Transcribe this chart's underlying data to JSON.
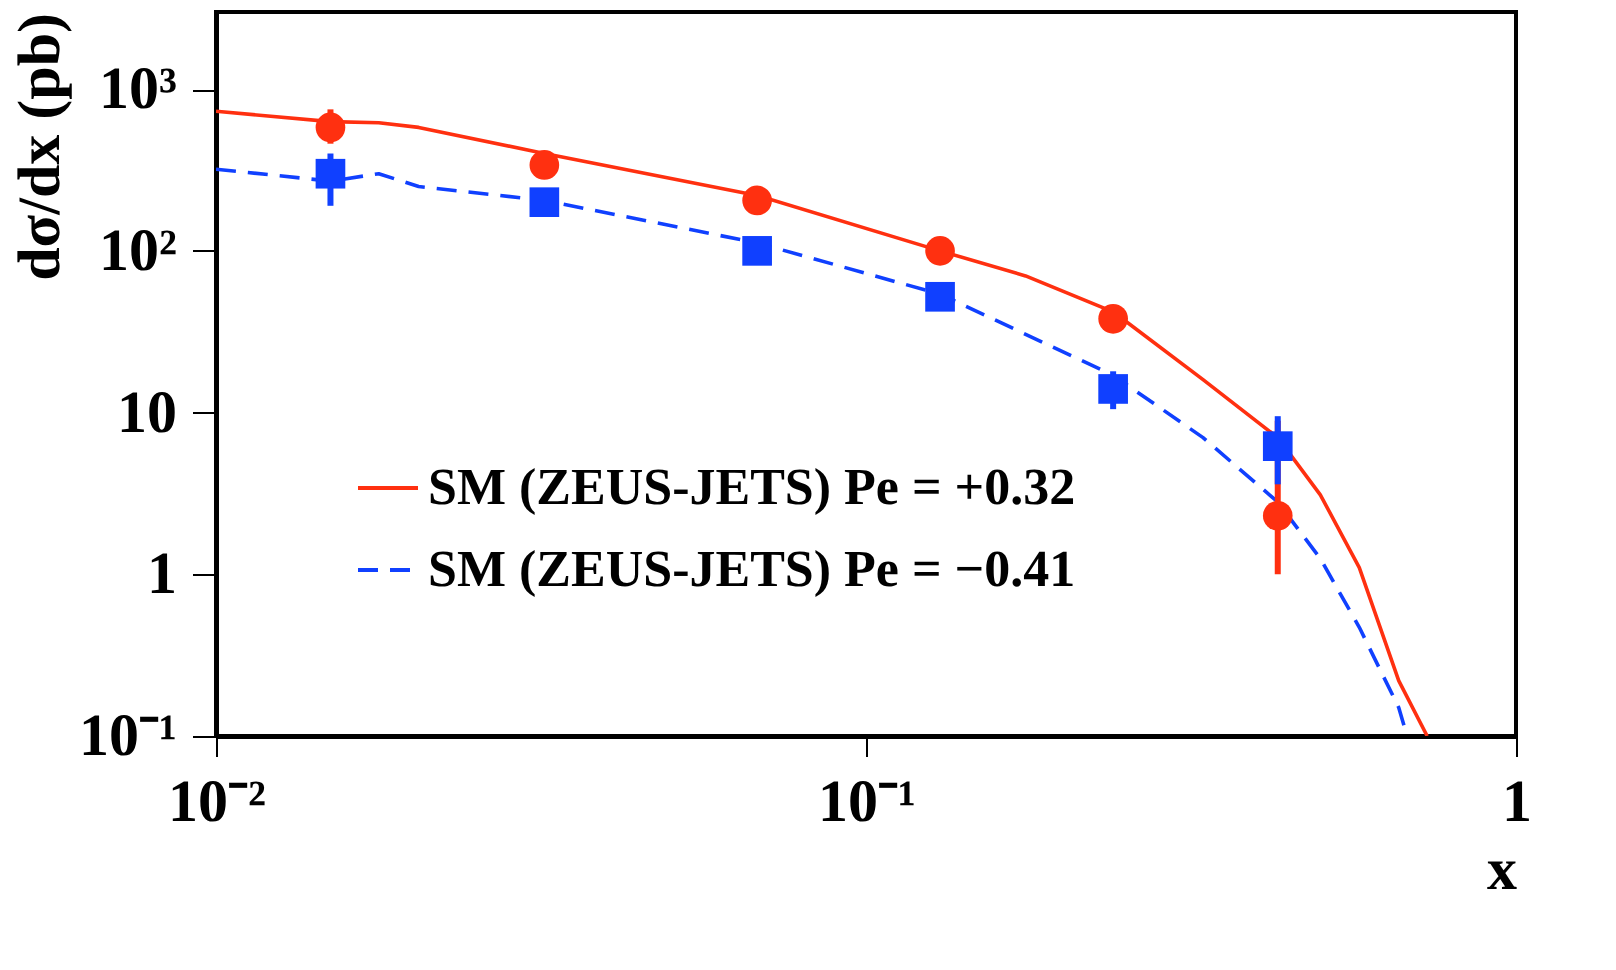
{
  "chart_data": {
    "type": "line",
    "xlabel": "x",
    "ylabel": "dσ/dx (pb)",
    "log": "xy",
    "xlim": [
      0.01,
      1
    ],
    "ylim": [
      0.1,
      3000
    ],
    "xticks": [
      {
        "value": 0.01,
        "label": "10⁻²"
      },
      {
        "value": 0.1,
        "label": "10⁻¹"
      },
      1
    ],
    "yticks": [
      {
        "value": 0.1,
        "label": "10⁻¹"
      },
      1,
      10,
      {
        "value": 100,
        "label": "10²"
      },
      {
        "value": 1000,
        "label": "10³"
      }
    ],
    "grid": false,
    "legend": "bottom left",
    "series": [
      {
        "name": "SM (ZEUS-JETS) Pe = +0.32",
        "line_style": "solid",
        "marker": "none",
        "color": "#ff3010",
        "x": [
          0.01,
          0.015,
          0.0178,
          0.0205,
          0.032,
          0.068,
          0.13,
          0.176,
          0.24,
          0.33,
          0.43,
          0.5,
          0.574,
          0.66,
          0.73
        ],
        "values": [
          730,
          630,
          620,
          580,
          400,
          220,
          100,
          70,
          42,
          16,
          7,
          3.1,
          1.1,
          0.22,
          0.1
        ]
      },
      {
        "name": "SM (ZEUS-JETS) Pe = −0.41",
        "line_style": "dashed",
        "marker": "none",
        "color": "#1040ff",
        "x": [
          0.01,
          0.015,
          0.0178,
          0.0205,
          0.032,
          0.068,
          0.13,
          0.24,
          0.33,
          0.43,
          0.5,
          0.574,
          0.66,
          0.68
        ],
        "values": [
          320,
          270,
          300,
          250,
          205,
          112,
          54,
          17,
          7,
          2.8,
          1.25,
          0.47,
          0.15,
          0.1
        ]
      },
      {
        "type": "scatter",
        "marker": "circle",
        "color": "#ff3010",
        "x": [
          0.015,
          0.032,
          0.068,
          0.13,
          0.24,
          0.43
        ],
        "values": [
          580,
          340,
          205,
          100,
          38,
          2.3
        ],
        "errors": [
          [
            460,
            750
          ],
          null,
          null,
          null,
          null,
          [
            1.0,
            8.9
          ]
        ]
      },
      {
        "type": "scatter",
        "marker": "square",
        "color": "#1040ff",
        "x": [
          0.015,
          0.032,
          0.068,
          0.13,
          0.24,
          0.43
        ],
        "values": [
          300,
          200,
          100,
          52,
          14,
          6.2
        ],
        "errors": [
          [
            190,
            400
          ],
          null,
          null,
          null,
          [
            10.5,
            18
          ],
          [
            3.6,
            9.5
          ]
        ]
      }
    ]
  }
}
